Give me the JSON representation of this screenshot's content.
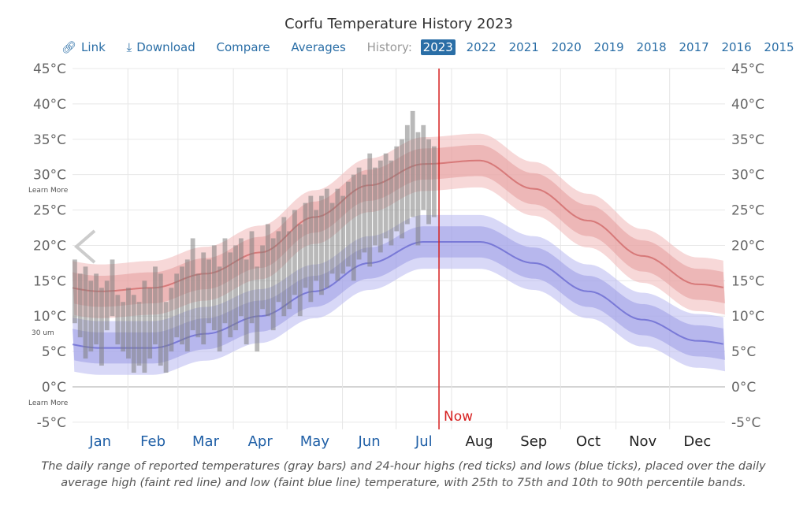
{
  "title": "Corfu Temperature History 2023",
  "toolbar": {
    "link": "Link",
    "download": "Download",
    "compare": "Compare",
    "averages": "Averages",
    "history_label": "History:",
    "years": [
      "2023",
      "2022",
      "2021",
      "2020",
      "2019",
      "2018",
      "2017",
      "2016",
      "2015"
    ],
    "selected_year": "2023"
  },
  "overlay_text": {
    "learn_more_1": "Learn More",
    "learn_more_2": "Learn More",
    "fragment": "30 um"
  },
  "caption": "The daily range of reported temperatures (gray bars) and 24-hour highs (red ticks) and lows (blue ticks), placed over the daily average high (faint red line) and low (faint blue line) temperature, with 25th to 75th and 10th to 90th percentile bands.",
  "colors": {
    "accent": "#2a6ea6",
    "now_line": "#d62020",
    "high": "#c85050",
    "low": "#5050c8",
    "bars": "#808080"
  },
  "chart_data": {
    "type": "bar",
    "ylim": [
      -5,
      45
    ],
    "yticks": [
      "45°C",
      "40°C",
      "35°C",
      "30°C",
      "25°C",
      "20°C",
      "15°C",
      "10°C",
      "5°C",
      "0°C",
      "-5°C"
    ],
    "ytick_values": [
      45,
      40,
      35,
      30,
      25,
      20,
      15,
      10,
      5,
      0,
      -5
    ],
    "categories": [
      "Jan",
      "Feb",
      "Mar",
      "Apr",
      "May",
      "Jun",
      "Jul",
      "Aug",
      "Sep",
      "Oct",
      "Nov",
      "Dec"
    ],
    "grid": true,
    "now_label": "Now",
    "now_day": 205,
    "average_high": [
      13.5,
      14,
      16,
      19,
      24,
      28.5,
      31.5,
      32,
      28,
      23.5,
      18.5,
      14.5
    ],
    "average_low": [
      5.5,
      5.5,
      7.5,
      10,
      13.5,
      17.5,
      20.5,
      20.5,
      17.5,
      13.5,
      9.5,
      6.5
    ],
    "band_25_75_halfwidth": 2.2,
    "band_10_90_halfwidth": 3.8,
    "daily_step_days": 3,
    "daily_range": [
      [
        9,
        18
      ],
      [
        7,
        16
      ],
      [
        4,
        17
      ],
      [
        5,
        15
      ],
      [
        6,
        16
      ],
      [
        3,
        14
      ],
      [
        8,
        15
      ],
      [
        10,
        18
      ],
      [
        6,
        13
      ],
      [
        5,
        12
      ],
      [
        4,
        14
      ],
      [
        2,
        13
      ],
      [
        3,
        12
      ],
      [
        2,
        15
      ],
      [
        4,
        14
      ],
      [
        6,
        17
      ],
      [
        3,
        16
      ],
      [
        2,
        12
      ],
      [
        5,
        14
      ],
      [
        7,
        16
      ],
      [
        6,
        17
      ],
      [
        5,
        18
      ],
      [
        8,
        21
      ],
      [
        7,
        16
      ],
      [
        6,
        19
      ],
      [
        9,
        18
      ],
      [
        8,
        20
      ],
      [
        5,
        17
      ],
      [
        9,
        21
      ],
      [
        7,
        19
      ],
      [
        8,
        20
      ],
      [
        10,
        21
      ],
      [
        6,
        18
      ],
      [
        9,
        22
      ],
      [
        5,
        17
      ],
      [
        11,
        20
      ],
      [
        10,
        23
      ],
      [
        8,
        21
      ],
      [
        12,
        22
      ],
      [
        10,
        24
      ],
      [
        11,
        22
      ],
      [
        13,
        25
      ],
      [
        10,
        23
      ],
      [
        14,
        26
      ],
      [
        12,
        27
      ],
      [
        15,
        25
      ],
      [
        13,
        27
      ],
      [
        14,
        28
      ],
      [
        16,
        26
      ],
      [
        15,
        28
      ],
      [
        16,
        27
      ],
      [
        17,
        29
      ],
      [
        15,
        30
      ],
      [
        18,
        31
      ],
      [
        19,
        30
      ],
      [
        17,
        33
      ],
      [
        20,
        31
      ],
      [
        19,
        32
      ],
      [
        21,
        33
      ],
      [
        20,
        32
      ],
      [
        22,
        34
      ],
      [
        21,
        35
      ],
      [
        23,
        37
      ],
      [
        24,
        39
      ],
      [
        20,
        36
      ],
      [
        25,
        37
      ],
      [
        23,
        35
      ],
      [
        24,
        34
      ]
    ]
  }
}
